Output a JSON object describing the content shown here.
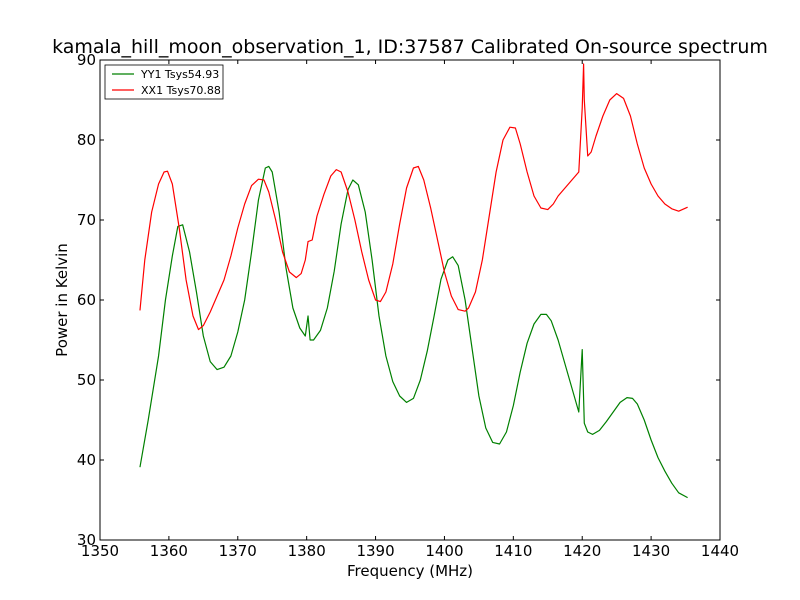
{
  "chart_data": {
    "type": "line",
    "title": "kamala_hill_moon_observation_1, ID:37587 Calibrated On-source spectrum",
    "xlabel": "Frequency (MHz)",
    "ylabel": "Power in Kelvin",
    "xlim": [
      1350,
      1440
    ],
    "ylim": [
      30,
      90
    ],
    "xticks": [
      1350,
      1360,
      1370,
      1380,
      1390,
      1400,
      1410,
      1420,
      1430,
      1440
    ],
    "yticks": [
      30,
      40,
      50,
      60,
      70,
      80,
      90
    ],
    "grid": false,
    "legend_position": "top-left",
    "series": [
      {
        "name": "YY1 Tsys54.93",
        "color": "#008000",
        "x": [
          1355.8,
          1357,
          1358.5,
          1359.5,
          1360.5,
          1361.3,
          1362,
          1363,
          1364,
          1365,
          1366,
          1367,
          1368,
          1369,
          1370,
          1371,
          1372,
          1373,
          1374,
          1374.5,
          1375,
          1376,
          1377,
          1378,
          1379,
          1379.8,
          1380.2,
          1380.5,
          1381,
          1382,
          1383,
          1384,
          1385,
          1386,
          1386.7,
          1387.5,
          1388.5,
          1389.5,
          1390.5,
          1391.5,
          1392.5,
          1393.5,
          1394.5,
          1395.5,
          1396.5,
          1397.5,
          1398.5,
          1399.5,
          1400.5,
          1401.2,
          1402,
          1403,
          1404,
          1405,
          1406,
          1407,
          1408,
          1409,
          1410,
          1411,
          1412,
          1413,
          1414,
          1414.8,
          1415.5,
          1416.5,
          1417.5,
          1418.5,
          1419.5,
          1420,
          1420.3,
          1420.8,
          1421.5,
          1422.5,
          1423.5,
          1424.5,
          1425.5,
          1426.5,
          1427.3,
          1428,
          1429,
          1430,
          1431,
          1432,
          1433,
          1434,
          1435.3
        ],
        "values": [
          39.1,
          45,
          53,
          60,
          65.5,
          69.2,
          69.4,
          66,
          61,
          55.5,
          52.3,
          51.3,
          51.6,
          53,
          56,
          60,
          66,
          72.5,
          76.5,
          76.7,
          76,
          71,
          64,
          59,
          56.5,
          55.5,
          58,
          55,
          55,
          56.2,
          59,
          63.6,
          69.5,
          73.8,
          75,
          74.4,
          71,
          65,
          58,
          53,
          49.8,
          48,
          47.2,
          47.7,
          50,
          53.6,
          58,
          62.6,
          65,
          65.4,
          64.3,
          60,
          54,
          48,
          44,
          42.2,
          42,
          43.5,
          46.8,
          51,
          54.6,
          57,
          58.2,
          58.2,
          57.4,
          55,
          52,
          49,
          46,
          53.8,
          44.6,
          43.5,
          43.2,
          43.7,
          44.8,
          46,
          47.2,
          47.8,
          47.7,
          47,
          45,
          42.5,
          40.3,
          38.6,
          37.1,
          35.9,
          35.3
        ]
      },
      {
        "name": "XX1 Tsys70.88",
        "color": "#ff0000",
        "x": [
          1355.8,
          1356.5,
          1357.5,
          1358.5,
          1359.3,
          1359.8,
          1360.5,
          1361.5,
          1362.5,
          1363.5,
          1364.3,
          1365,
          1366,
          1367,
          1368,
          1369,
          1370,
          1371,
          1372,
          1373,
          1373.8,
          1374.5,
          1375.5,
          1376.5,
          1377.5,
          1378.5,
          1379.2,
          1379.8,
          1380.2,
          1380.8,
          1381.5,
          1382.5,
          1383.5,
          1384.3,
          1385,
          1386,
          1387,
          1388,
          1389,
          1390,
          1390.7,
          1391.5,
          1392.5,
          1393.5,
          1394.5,
          1395.5,
          1396.2,
          1397,
          1398,
          1399,
          1400,
          1401,
          1402,
          1403,
          1403.5,
          1404.5,
          1405.5,
          1406.5,
          1407.5,
          1408.5,
          1409.5,
          1410.3,
          1411,
          1412,
          1413,
          1414,
          1415,
          1415.8,
          1416.5,
          1417.5,
          1418.5,
          1419.5,
          1420,
          1420.2,
          1420.3,
          1420.8,
          1421.3,
          1422,
          1423,
          1424,
          1425,
          1426,
          1427,
          1428,
          1429,
          1430,
          1431,
          1432,
          1433,
          1434,
          1435.3
        ],
        "values": [
          58.7,
          65,
          71,
          74.5,
          76,
          76.1,
          74.5,
          69,
          62.5,
          58,
          56.3,
          56.8,
          58.5,
          60.5,
          62.5,
          65.5,
          69,
          72,
          74.3,
          75.1,
          75,
          73.5,
          70,
          66,
          63.5,
          62.8,
          63.3,
          65,
          67.3,
          67.5,
          70.5,
          73.2,
          75.5,
          76.3,
          76,
          73.5,
          70,
          66,
          62.5,
          60,
          59.8,
          61,
          64.5,
          69.5,
          74,
          76.5,
          76.7,
          75,
          71.5,
          67.5,
          63.5,
          60.5,
          58.8,
          58.6,
          59,
          61,
          65,
          70.5,
          76,
          80,
          81.6,
          81.5,
          79.5,
          76,
          73,
          71.5,
          71.3,
          72,
          73,
          74,
          75,
          76,
          84,
          89.5,
          85,
          78,
          78.5,
          80.5,
          83,
          85,
          85.8,
          85.2,
          83,
          79.5,
          76.5,
          74.5,
          73,
          72,
          71.4,
          71.1,
          71.6
        ]
      }
    ]
  }
}
